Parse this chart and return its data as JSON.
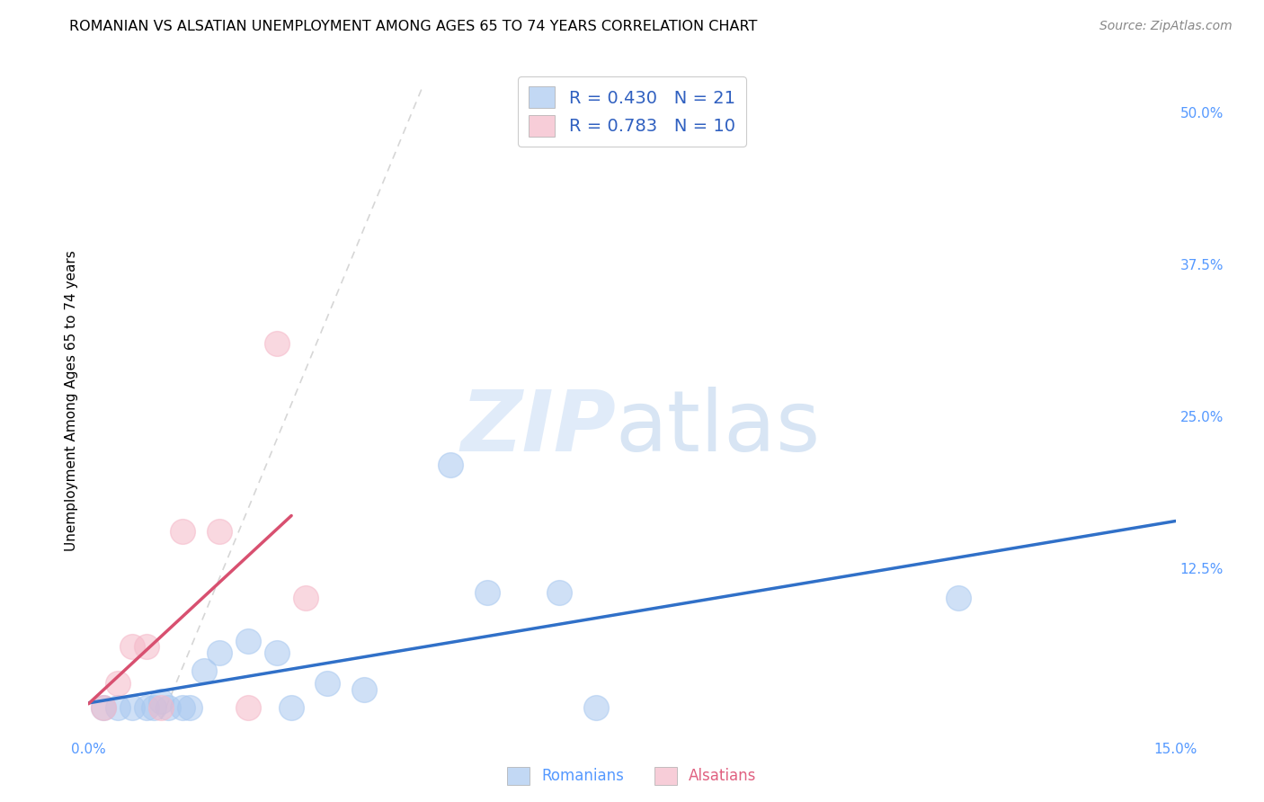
{
  "title": "ROMANIAN VS ALSATIAN UNEMPLOYMENT AMONG AGES 65 TO 74 YEARS CORRELATION CHART",
  "source": "Source: ZipAtlas.com",
  "ylabel": "Unemployment Among Ages 65 to 74 years",
  "xlim": [
    0.0,
    0.15
  ],
  "ylim": [
    -0.015,
    0.54
  ],
  "xticks": [
    0.0,
    0.05,
    0.1,
    0.15
  ],
  "xtick_labels": [
    "0.0%",
    "",
    "",
    "15.0%"
  ],
  "ytick_labels_right": [
    "",
    "12.5%",
    "25.0%",
    "37.5%",
    "50.0%"
  ],
  "ytick_positions_right": [
    0.0,
    0.125,
    0.25,
    0.375,
    0.5
  ],
  "romanians_x": [
    0.002,
    0.004,
    0.006,
    0.008,
    0.009,
    0.01,
    0.011,
    0.013,
    0.014,
    0.016,
    0.018,
    0.022,
    0.026,
    0.028,
    0.033,
    0.038,
    0.05,
    0.055,
    0.065,
    0.07,
    0.12
  ],
  "romanians_y": [
    0.01,
    0.01,
    0.01,
    0.01,
    0.01,
    0.015,
    0.01,
    0.01,
    0.01,
    0.04,
    0.055,
    0.065,
    0.055,
    0.01,
    0.03,
    0.025,
    0.21,
    0.105,
    0.105,
    0.01,
    0.1
  ],
  "alsatians_x": [
    0.002,
    0.004,
    0.006,
    0.008,
    0.01,
    0.013,
    0.018,
    0.022,
    0.026,
    0.03
  ],
  "alsatians_y": [
    0.01,
    0.03,
    0.06,
    0.06,
    0.01,
    0.155,
    0.155,
    0.01,
    0.31,
    0.1
  ],
  "romanian_R": 0.43,
  "romanian_N": 21,
  "alsatian_R": 0.783,
  "alsatian_N": 10,
  "romanian_color": "#a8c8f0",
  "alsatian_color": "#f5b8c8",
  "romanian_line_color": "#3070c8",
  "alsatian_line_color": "#d85070",
  "diagonal_line_color": "#cccccc",
  "title_fontsize": 11.5,
  "axis_label_fontsize": 11,
  "tick_fontsize": 11,
  "legend_fontsize": 14,
  "source_fontsize": 10,
  "background_color": "#ffffff",
  "grid_color": "#dddddd",
  "tick_color": "#5599ff"
}
